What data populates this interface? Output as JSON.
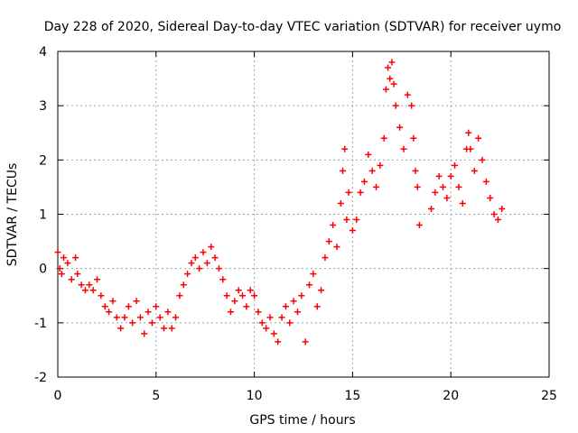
{
  "chart_data": {
    "type": "scatter",
    "title": "Day 228 of 2020, Sidereal Day-to-day VTEC variation (SDTVAR) for receiver uymo",
    "xlabel": "GPS time / hours",
    "ylabel": "SDTVAR / TECUs",
    "xlim": [
      0,
      25
    ],
    "ylim": [
      -2,
      4
    ],
    "xticks": [
      0,
      5,
      10,
      15,
      20,
      25
    ],
    "yticks": [
      -2,
      -1,
      0,
      1,
      2,
      3,
      4
    ],
    "grid": true,
    "marker": "+",
    "series": [
      {
        "name": "SDTVAR",
        "color": "#ff0000",
        "points": [
          [
            0.0,
            0.3
          ],
          [
            0.1,
            0.0
          ],
          [
            0.2,
            -0.1
          ],
          [
            0.3,
            0.2
          ],
          [
            0.5,
            0.1
          ],
          [
            0.7,
            -0.2
          ],
          [
            0.9,
            0.2
          ],
          [
            1.0,
            -0.1
          ],
          [
            1.2,
            -0.3
          ],
          [
            1.4,
            -0.4
          ],
          [
            1.6,
            -0.3
          ],
          [
            1.8,
            -0.4
          ],
          [
            2.0,
            -0.2
          ],
          [
            2.2,
            -0.5
          ],
          [
            2.4,
            -0.7
          ],
          [
            2.6,
            -0.8
          ],
          [
            2.8,
            -0.6
          ],
          [
            3.0,
            -0.9
          ],
          [
            3.2,
            -1.1
          ],
          [
            3.4,
            -0.9
          ],
          [
            3.6,
            -0.7
          ],
          [
            3.8,
            -1.0
          ],
          [
            4.0,
            -0.6
          ],
          [
            4.2,
            -0.9
          ],
          [
            4.4,
            -1.2
          ],
          [
            4.6,
            -0.8
          ],
          [
            4.8,
            -1.0
          ],
          [
            5.0,
            -0.7
          ],
          [
            5.2,
            -0.9
          ],
          [
            5.4,
            -1.1
          ],
          [
            5.6,
            -0.8
          ],
          [
            5.8,
            -1.1
          ],
          [
            6.0,
            -0.9
          ],
          [
            6.2,
            -0.5
          ],
          [
            6.4,
            -0.3
          ],
          [
            6.6,
            -0.1
          ],
          [
            6.8,
            0.1
          ],
          [
            7.0,
            0.2
          ],
          [
            7.2,
            0.0
          ],
          [
            7.4,
            0.3
          ],
          [
            7.6,
            0.1
          ],
          [
            7.8,
            0.4
          ],
          [
            8.0,
            0.2
          ],
          [
            8.2,
            0.0
          ],
          [
            8.4,
            -0.2
          ],
          [
            8.6,
            -0.5
          ],
          [
            8.8,
            -0.8
          ],
          [
            9.0,
            -0.6
          ],
          [
            9.2,
            -0.4
          ],
          [
            9.4,
            -0.5
          ],
          [
            9.6,
            -0.7
          ],
          [
            9.8,
            -0.4
          ],
          [
            10.0,
            -0.5
          ],
          [
            10.2,
            -0.8
          ],
          [
            10.4,
            -1.0
          ],
          [
            10.6,
            -1.1
          ],
          [
            10.8,
            -0.9
          ],
          [
            11.0,
            -1.2
          ],
          [
            11.2,
            -1.35
          ],
          [
            11.4,
            -0.9
          ],
          [
            11.6,
            -0.7
          ],
          [
            11.8,
            -1.0
          ],
          [
            12.0,
            -0.6
          ],
          [
            12.2,
            -0.8
          ],
          [
            12.4,
            -0.5
          ],
          [
            12.6,
            -1.35
          ],
          [
            12.8,
            -0.3
          ],
          [
            13.0,
            -0.1
          ],
          [
            13.2,
            -0.7
          ],
          [
            13.4,
            -0.4
          ],
          [
            13.6,
            0.2
          ],
          [
            13.8,
            0.5
          ],
          [
            14.0,
            0.8
          ],
          [
            14.2,
            0.4
          ],
          [
            14.4,
            1.2
          ],
          [
            14.5,
            1.8
          ],
          [
            14.6,
            2.2
          ],
          [
            14.7,
            0.9
          ],
          [
            14.8,
            1.4
          ],
          [
            15.0,
            0.7
          ],
          [
            15.2,
            0.9
          ],
          [
            15.4,
            1.4
          ],
          [
            15.6,
            1.6
          ],
          [
            15.8,
            2.1
          ],
          [
            16.0,
            1.8
          ],
          [
            16.2,
            1.5
          ],
          [
            16.4,
            1.9
          ],
          [
            16.6,
            2.4
          ],
          [
            16.7,
            3.3
          ],
          [
            16.8,
            3.7
          ],
          [
            16.9,
            3.5
          ],
          [
            17.0,
            3.8
          ],
          [
            17.1,
            3.4
          ],
          [
            17.2,
            3.0
          ],
          [
            17.4,
            2.6
          ],
          [
            17.6,
            2.2
          ],
          [
            17.8,
            3.2
          ],
          [
            18.0,
            3.0
          ],
          [
            18.1,
            2.4
          ],
          [
            18.2,
            1.8
          ],
          [
            18.3,
            1.5
          ],
          [
            18.4,
            0.8
          ],
          [
            19.0,
            1.1
          ],
          [
            19.2,
            1.4
          ],
          [
            19.4,
            1.7
          ],
          [
            19.6,
            1.5
          ],
          [
            19.8,
            1.3
          ],
          [
            20.0,
            1.7
          ],
          [
            20.2,
            1.9
          ],
          [
            20.4,
            1.5
          ],
          [
            20.6,
            1.2
          ],
          [
            20.8,
            2.2
          ],
          [
            20.9,
            2.5
          ],
          [
            21.0,
            2.2
          ],
          [
            21.2,
            1.8
          ],
          [
            21.4,
            2.4
          ],
          [
            21.6,
            2.0
          ],
          [
            21.8,
            1.6
          ],
          [
            22.0,
            1.3
          ],
          [
            22.2,
            1.0
          ],
          [
            22.4,
            0.9
          ],
          [
            22.6,
            1.1
          ]
        ]
      }
    ]
  }
}
